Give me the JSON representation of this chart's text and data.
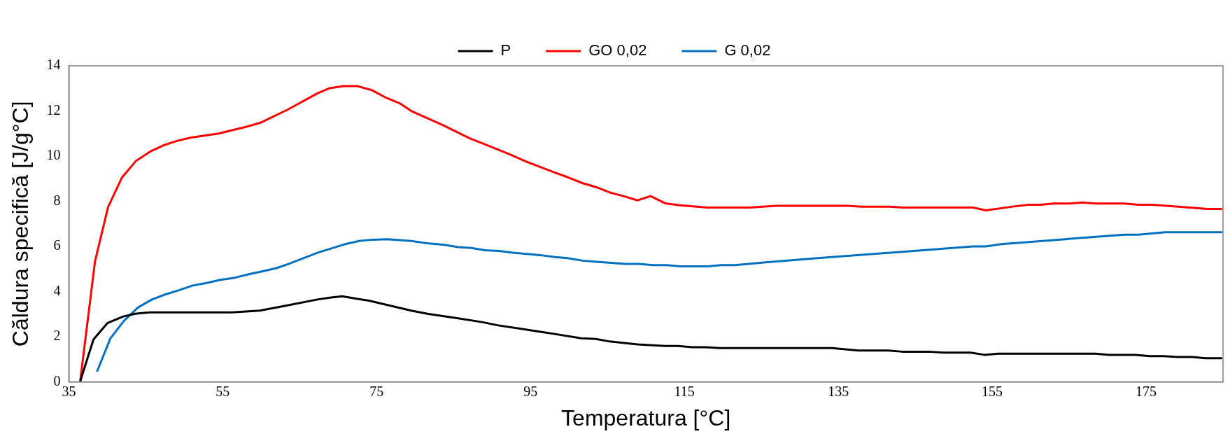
{
  "chart_data": {
    "type": "line",
    "xlabel": "Temperatura [°C]",
    "ylabel": "Căldura specifică [J/g°C]",
    "xlim": [
      35,
      185
    ],
    "xticks": [
      35,
      55,
      75,
      95,
      115,
      135,
      155,
      175
    ],
    "ylim": [
      0,
      14
    ],
    "yticks": [
      0,
      2,
      4,
      6,
      8,
      10,
      12,
      14
    ],
    "grid": false,
    "legend": "top",
    "marker": "none",
    "line_style": "solid",
    "series": [
      {
        "name": "P",
        "color": "#000000",
        "x": [
          36.5,
          38.2,
          40,
          42,
          43.6,
          45.5,
          56.2,
          59.8,
          63.3,
          67.3,
          68.9,
          70.5,
          74,
          79.5,
          81.6,
          85.3,
          88.7,
          90.7,
          94.4,
          98,
          101.6,
          103.5,
          105.3,
          108.9,
          112.5,
          114.2,
          116,
          117.6,
          119.5,
          132.3,
          134.2,
          137.6,
          141.5,
          143.3,
          146.7,
          148.7,
          152.2,
          154,
          155.8,
          168.4,
          170.2,
          173.6,
          175.5,
          177.3,
          179.1,
          181,
          182.7,
          184.8
        ],
        "values": [
          0.05,
          1.88,
          2.6,
          2.89,
          3.02,
          3.08,
          3.08,
          3.16,
          3.38,
          3.65,
          3.73,
          3.79,
          3.6,
          3.16,
          3.02,
          2.83,
          2.65,
          2.51,
          2.32,
          2.13,
          1.93,
          1.9,
          1.79,
          1.66,
          1.59,
          1.59,
          1.54,
          1.54,
          1.5,
          1.5,
          1.5,
          1.39,
          1.39,
          1.34,
          1.34,
          1.3,
          1.3,
          1.2,
          1.25,
          1.25,
          1.2,
          1.2,
          1.14,
          1.14,
          1.1,
          1.1,
          1.05,
          1.05
        ]
      },
      {
        "name": "GO 0,02",
        "color": "#ff0000",
        "x": [
          36.5,
          38.4,
          40.1,
          41.9,
          43.7,
          45.5,
          47.4,
          49.1,
          50.9,
          52.9,
          54.5,
          56.5,
          58.2,
          59.9,
          63.5,
          67.3,
          68.9,
          70.7,
          72.5,
          74.4,
          76.2,
          78,
          79.5,
          83.5,
          87.1,
          88.9,
          92.5,
          94.5,
          98,
          99.8,
          101.8,
          103.5,
          105.3,
          107.1,
          108.9,
          110.6,
          112.5,
          114.4,
          118,
          123.5,
          126.9,
          136.2,
          138,
          141.6,
          143.5,
          152.5,
          154.2,
          158,
          159.8,
          161.3,
          163,
          165.1,
          166.7,
          168.5,
          172.2,
          174,
          175.8,
          179.5,
          183,
          184.8
        ],
        "values": [
          0.1,
          5.34,
          7.74,
          9.05,
          9.78,
          10.19,
          10.49,
          10.68,
          10.82,
          10.92,
          11.0,
          11.17,
          11.31,
          11.48,
          12.07,
          12.78,
          13.01,
          13.1,
          13.1,
          12.92,
          12.59,
          12.34,
          12.0,
          11.39,
          10.79,
          10.55,
          10.05,
          9.75,
          9.29,
          9.07,
          8.8,
          8.63,
          8.39,
          8.23,
          8.04,
          8.23,
          7.91,
          7.82,
          7.72,
          7.72,
          7.8,
          7.8,
          7.76,
          7.76,
          7.72,
          7.72,
          7.6,
          7.78,
          7.85,
          7.85,
          7.9,
          7.9,
          7.95,
          7.9,
          7.9,
          7.85,
          7.85,
          7.75,
          7.66,
          7.66
        ]
      },
      {
        "name": "G 0,02",
        "color": "#0070c0",
        "x": [
          38.7,
          40.4,
          42.2,
          44,
          45.8,
          47.5,
          49.3,
          51.1,
          52.9,
          54.7,
          56.5,
          58.4,
          60.2,
          62,
          63.6,
          67.3,
          68.9,
          70.9,
          72.7,
          74.5,
          76.4,
          79.5,
          81.8,
          83.8,
          85.6,
          87.3,
          89.1,
          90.9,
          92.7,
          96.4,
          98.2,
          99.8,
          101.8,
          103.6,
          107.3,
          109.1,
          110.9,
          112.7,
          114.5,
          118,
          119.8,
          121.6,
          125.3,
          132.3,
          152.5,
          154.2,
          156.2,
          166.7,
          172.2,
          174,
          177.5,
          184.8
        ],
        "values": [
          0.49,
          1.93,
          2.72,
          3.3,
          3.65,
          3.87,
          4.06,
          4.27,
          4.38,
          4.52,
          4.61,
          4.77,
          4.9,
          5.04,
          5.23,
          5.72,
          5.89,
          6.1,
          6.24,
          6.3,
          6.32,
          6.24,
          6.13,
          6.07,
          5.97,
          5.93,
          5.83,
          5.8,
          5.72,
          5.61,
          5.53,
          5.48,
          5.37,
          5.32,
          5.23,
          5.23,
          5.17,
          5.17,
          5.12,
          5.12,
          5.17,
          5.17,
          5.29,
          5.48,
          6.0,
          6.0,
          6.1,
          6.38,
          6.52,
          6.52,
          6.63,
          6.63
        ]
      }
    ]
  }
}
